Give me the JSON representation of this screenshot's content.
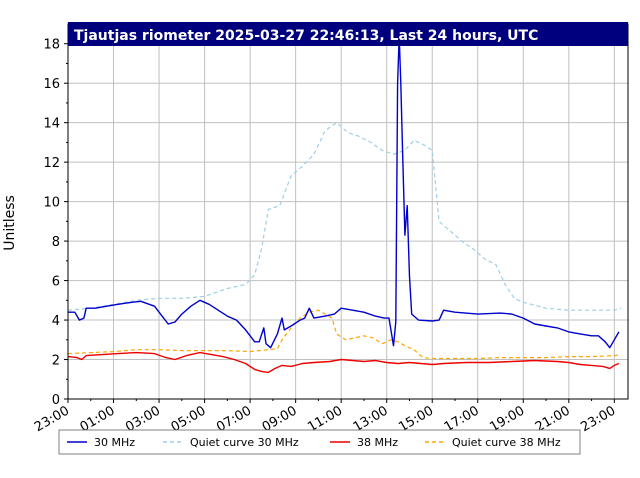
{
  "chart_data": {
    "type": "line",
    "title": "Tjautjas riometer 2025-03-27 22:46:13, Last 24 hours, UTC",
    "ylabel": "Unitless",
    "xlabel": "",
    "x_unit": "hours UTC (relative to 00:00 on 2025-03-27; 23:00 start = -1)",
    "xlim": [
      -1,
      23.6
    ],
    "ylim": [
      0,
      19
    ],
    "y_ticks": [
      "0",
      "2",
      "4",
      "6",
      "8",
      "10",
      "12",
      "14",
      "16",
      "18"
    ],
    "x_ticks": [
      "23:00",
      "01:00",
      "03:00",
      "05:00",
      "07:00",
      "09:00",
      "11:00",
      "13:00",
      "15:00",
      "17:00",
      "19:00",
      "21:00",
      "23:00"
    ],
    "grid": true,
    "legend_position": "bottom",
    "series": [
      {
        "name": "30 MHz",
        "color": "#0000cc",
        "dash": false,
        "points": [
          [
            -1.0,
            4.4
          ],
          [
            -0.7,
            4.4
          ],
          [
            -0.6,
            4.2
          ],
          [
            -0.5,
            4.0
          ],
          [
            -0.3,
            4.1
          ],
          [
            -0.2,
            4.6
          ],
          [
            0.2,
            4.6
          ],
          [
            0.7,
            4.7
          ],
          [
            1.2,
            4.8
          ],
          [
            1.8,
            4.9
          ],
          [
            2.2,
            4.95
          ],
          [
            2.8,
            4.7
          ],
          [
            3.2,
            4.1
          ],
          [
            3.4,
            3.8
          ],
          [
            3.7,
            3.9
          ],
          [
            4.0,
            4.3
          ],
          [
            4.4,
            4.7
          ],
          [
            4.8,
            5.0
          ],
          [
            5.2,
            4.8
          ],
          [
            5.6,
            4.5
          ],
          [
            6.0,
            4.2
          ],
          [
            6.4,
            4.0
          ],
          [
            6.8,
            3.5
          ],
          [
            7.0,
            3.2
          ],
          [
            7.2,
            2.9
          ],
          [
            7.4,
            2.9
          ],
          [
            7.6,
            3.6
          ],
          [
            7.7,
            2.8
          ],
          [
            7.9,
            2.6
          ],
          [
            8.2,
            3.3
          ],
          [
            8.4,
            4.1
          ],
          [
            8.5,
            3.5
          ],
          [
            8.8,
            3.7
          ],
          [
            9.2,
            4.0
          ],
          [
            9.4,
            4.1
          ],
          [
            9.6,
            4.6
          ],
          [
            9.8,
            4.1
          ],
          [
            10.3,
            4.2
          ],
          [
            10.7,
            4.3
          ],
          [
            11.0,
            4.6
          ],
          [
            11.5,
            4.5
          ],
          [
            12.0,
            4.4
          ],
          [
            12.5,
            4.2
          ],
          [
            12.9,
            4.1
          ],
          [
            13.1,
            4.1
          ],
          [
            13.3,
            2.7
          ],
          [
            13.4,
            3.9
          ],
          [
            13.48,
            16.0
          ],
          [
            13.55,
            18.4
          ],
          [
            13.62,
            16.0
          ],
          [
            13.7,
            12.5
          ],
          [
            13.8,
            8.3
          ],
          [
            13.9,
            9.8
          ],
          [
            14.0,
            6.2
          ],
          [
            14.1,
            4.3
          ],
          [
            14.4,
            4.0
          ],
          [
            15.0,
            3.95
          ],
          [
            15.3,
            4.0
          ],
          [
            15.5,
            4.5
          ],
          [
            16.0,
            4.4
          ],
          [
            17.0,
            4.3
          ],
          [
            18.0,
            4.35
          ],
          [
            18.5,
            4.3
          ],
          [
            19.0,
            4.1
          ],
          [
            19.5,
            3.8
          ],
          [
            20.0,
            3.7
          ],
          [
            20.5,
            3.6
          ],
          [
            21.0,
            3.4
          ],
          [
            21.5,
            3.3
          ],
          [
            22.0,
            3.2
          ],
          [
            22.3,
            3.2
          ],
          [
            22.6,
            2.9
          ],
          [
            22.8,
            2.6
          ],
          [
            23.0,
            3.0
          ],
          [
            23.2,
            3.4
          ]
        ]
      },
      {
        "name": "Quiet curve 30 MHz",
        "color": "#9ecfe6",
        "dash": true,
        "points": [
          [
            -1.0,
            4.5
          ],
          [
            0.0,
            4.6
          ],
          [
            1.0,
            4.8
          ],
          [
            2.0,
            5.0
          ],
          [
            3.0,
            5.1
          ],
          [
            4.0,
            5.1
          ],
          [
            5.0,
            5.2
          ],
          [
            6.0,
            5.6
          ],
          [
            6.8,
            5.8
          ],
          [
            7.2,
            6.3
          ],
          [
            7.5,
            7.6
          ],
          [
            7.8,
            9.6
          ],
          [
            8.3,
            9.8
          ],
          [
            8.8,
            11.3
          ],
          [
            9.3,
            11.8
          ],
          [
            9.8,
            12.4
          ],
          [
            10.3,
            13.6
          ],
          [
            10.8,
            14.0
          ],
          [
            11.3,
            13.5
          ],
          [
            11.8,
            13.3
          ],
          [
            12.3,
            13.0
          ],
          [
            12.8,
            12.6
          ],
          [
            13.3,
            12.4
          ],
          [
            13.8,
            12.6
          ],
          [
            14.2,
            13.1
          ],
          [
            14.6,
            12.9
          ],
          [
            15.0,
            12.6
          ],
          [
            15.3,
            9.0
          ],
          [
            15.8,
            8.5
          ],
          [
            16.3,
            8.0
          ],
          [
            16.8,
            7.6
          ],
          [
            17.3,
            7.1
          ],
          [
            17.8,
            6.8
          ],
          [
            18.2,
            5.8
          ],
          [
            18.6,
            5.1
          ],
          [
            19.0,
            4.9
          ],
          [
            20.0,
            4.6
          ],
          [
            21.0,
            4.5
          ],
          [
            22.0,
            4.5
          ],
          [
            23.0,
            4.5
          ],
          [
            23.3,
            4.6
          ]
        ]
      },
      {
        "name": "38 MHz",
        "color": "#ee0000",
        "dash": false,
        "points": [
          [
            -1.0,
            2.15
          ],
          [
            -0.6,
            2.1
          ],
          [
            -0.4,
            2.0
          ],
          [
            -0.2,
            2.2
          ],
          [
            0.5,
            2.25
          ],
          [
            1.2,
            2.3
          ],
          [
            2.0,
            2.35
          ],
          [
            2.8,
            2.3
          ],
          [
            3.3,
            2.1
          ],
          [
            3.7,
            2.0
          ],
          [
            4.2,
            2.2
          ],
          [
            4.8,
            2.35
          ],
          [
            5.3,
            2.25
          ],
          [
            5.8,
            2.15
          ],
          [
            6.3,
            2.0
          ],
          [
            6.8,
            1.8
          ],
          [
            7.2,
            1.5
          ],
          [
            7.5,
            1.4
          ],
          [
            7.8,
            1.35
          ],
          [
            8.1,
            1.55
          ],
          [
            8.4,
            1.7
          ],
          [
            8.8,
            1.65
          ],
          [
            9.3,
            1.8
          ],
          [
            9.8,
            1.85
          ],
          [
            10.5,
            1.9
          ],
          [
            11.0,
            2.0
          ],
          [
            11.5,
            1.95
          ],
          [
            12.0,
            1.9
          ],
          [
            12.5,
            1.95
          ],
          [
            13.0,
            1.85
          ],
          [
            13.5,
            1.8
          ],
          [
            14.0,
            1.85
          ],
          [
            14.5,
            1.8
          ],
          [
            15.0,
            1.75
          ],
          [
            15.5,
            1.8
          ],
          [
            16.5,
            1.85
          ],
          [
            17.5,
            1.85
          ],
          [
            18.5,
            1.9
          ],
          [
            19.5,
            1.95
          ],
          [
            20.5,
            1.9
          ],
          [
            21.0,
            1.85
          ],
          [
            21.5,
            1.75
          ],
          [
            22.0,
            1.7
          ],
          [
            22.5,
            1.65
          ],
          [
            22.8,
            1.55
          ],
          [
            23.0,
            1.7
          ],
          [
            23.2,
            1.8
          ]
        ]
      },
      {
        "name": "Quiet curve 38 MHz",
        "color": "#ffa500",
        "dash": true,
        "points": [
          [
            -1.0,
            2.3
          ],
          [
            0.0,
            2.35
          ],
          [
            1.0,
            2.4
          ],
          [
            2.0,
            2.5
          ],
          [
            3.0,
            2.5
          ],
          [
            4.0,
            2.45
          ],
          [
            5.0,
            2.45
          ],
          [
            6.0,
            2.45
          ],
          [
            7.0,
            2.4
          ],
          [
            7.8,
            2.5
          ],
          [
            8.2,
            2.55
          ],
          [
            8.4,
            3.0
          ],
          [
            8.8,
            3.6
          ],
          [
            9.2,
            4.1
          ],
          [
            9.6,
            4.4
          ],
          [
            10.0,
            4.5
          ],
          [
            10.3,
            4.3
          ],
          [
            10.6,
            4.1
          ],
          [
            10.8,
            3.3
          ],
          [
            11.2,
            3.0
          ],
          [
            11.6,
            3.1
          ],
          [
            12.0,
            3.2
          ],
          [
            12.4,
            3.1
          ],
          [
            12.8,
            2.8
          ],
          [
            13.2,
            3.0
          ],
          [
            13.5,
            2.9
          ],
          [
            13.8,
            2.7
          ],
          [
            14.2,
            2.5
          ],
          [
            14.6,
            2.1
          ],
          [
            15.0,
            2.05
          ],
          [
            16.0,
            2.05
          ],
          [
            17.0,
            2.05
          ],
          [
            18.0,
            2.1
          ],
          [
            19.0,
            2.1
          ],
          [
            20.0,
            2.1
          ],
          [
            21.0,
            2.15
          ],
          [
            22.0,
            2.15
          ],
          [
            23.0,
            2.2
          ],
          [
            23.3,
            2.25
          ]
        ]
      }
    ]
  },
  "colors": {
    "title_bar": "#00007f",
    "grid": "#c0c0c0",
    "frame": "#000000"
  }
}
